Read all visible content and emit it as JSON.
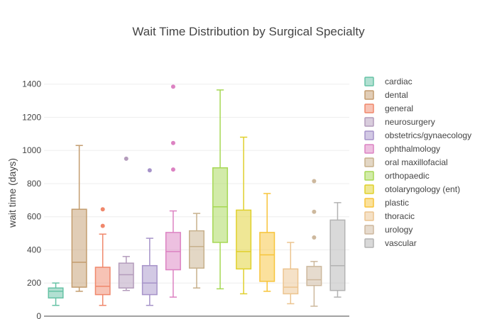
{
  "chart_data": {
    "type": "box",
    "title": "Wait Time Distribution by Surgical Specialty",
    "xlabel": "",
    "ylabel": "wait time (days)",
    "ylim": [
      0,
      1480
    ],
    "yticks": [
      0,
      200,
      400,
      600,
      800,
      1000,
      1200,
      1400
    ],
    "grid": true,
    "legend_position": "right",
    "series": [
      {
        "name": "cardiac",
        "color": "#66c2a5",
        "min": 65,
        "q1": 110,
        "median": 150,
        "q3": 170,
        "max": 200,
        "outliers": []
      },
      {
        "name": "dental",
        "color": "#c39c6e",
        "min": 150,
        "q1": 175,
        "median": 325,
        "q3": 645,
        "max": 1030,
        "outliers": []
      },
      {
        "name": "general",
        "color": "#f0876b",
        "min": 65,
        "q1": 130,
        "median": 180,
        "q3": 295,
        "max": 495,
        "outliers": [
          545,
          645
        ]
      },
      {
        "name": "neurosurgery",
        "color": "#b49cbc",
        "min": 155,
        "q1": 170,
        "median": 250,
        "q3": 320,
        "max": 360,
        "outliers": [
          950
        ]
      },
      {
        "name": "obstetrics/gynaecology",
        "color": "#a693c9",
        "min": 65,
        "q1": 130,
        "median": 200,
        "q3": 305,
        "max": 470,
        "outliers": [
          880
        ]
      },
      {
        "name": "ophthalmology",
        "color": "#dc82c2",
        "min": 115,
        "q1": 280,
        "median": 390,
        "q3": 505,
        "max": 635,
        "outliers": [
          885,
          1045,
          1385
        ]
      },
      {
        "name": "oral maxillofacial",
        "color": "#c7b08c",
        "min": 170,
        "q1": 290,
        "median": 420,
        "q3": 515,
        "max": 620,
        "outliers": []
      },
      {
        "name": "orthopaedic",
        "color": "#a6d854",
        "min": 165,
        "q1": 445,
        "median": 660,
        "q3": 895,
        "max": 1365,
        "outliers": []
      },
      {
        "name": "otolaryngology (ent)",
        "color": "#e0d02c",
        "min": 135,
        "q1": 285,
        "median": 390,
        "q3": 640,
        "max": 1080,
        "outliers": []
      },
      {
        "name": "plastic",
        "color": "#f7c43a",
        "min": 150,
        "q1": 210,
        "median": 370,
        "q3": 505,
        "max": 740,
        "outliers": []
      },
      {
        "name": "thoracic",
        "color": "#ecc48f",
        "min": 75,
        "q1": 135,
        "median": 175,
        "q3": 285,
        "max": 445,
        "outliers": []
      },
      {
        "name": "urology",
        "color": "#cdb89d",
        "min": 60,
        "q1": 185,
        "median": 220,
        "q3": 300,
        "max": 330,
        "outliers": [
          475,
          630,
          815
        ]
      },
      {
        "name": "vascular",
        "color": "#b3b3b3",
        "min": 115,
        "q1": 155,
        "median": 305,
        "q3": 580,
        "max": 685,
        "outliers": []
      }
    ]
  }
}
